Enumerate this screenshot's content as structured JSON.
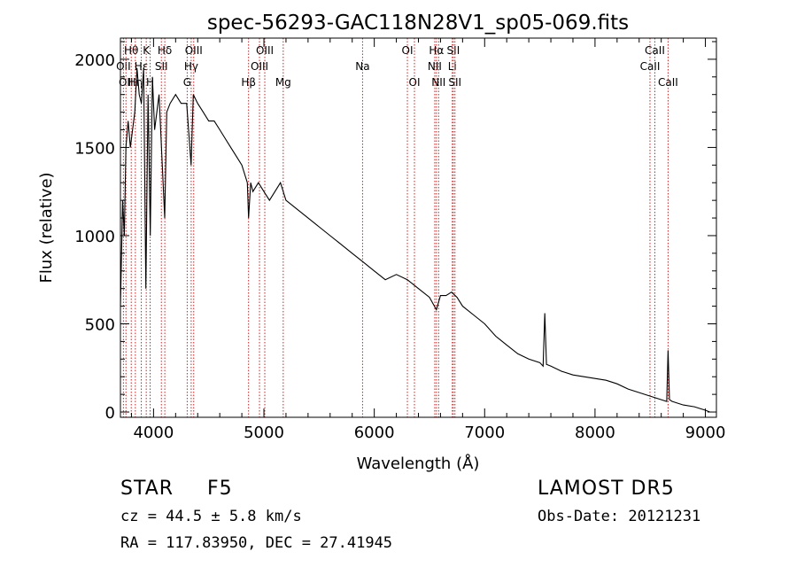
{
  "chart_data": {
    "type": "line",
    "title": "spec-56293-GAC118N28V1_sp05-069.fits",
    "xlabel": "Wavelength (Å)",
    "ylabel": "Flux (relative)",
    "xlim": [
      3700,
      9100
    ],
    "ylim": [
      -30,
      2120
    ],
    "xticks": [
      4000,
      5000,
      6000,
      7000,
      8000,
      9000
    ],
    "yticks": [
      0,
      500,
      1000,
      1500,
      2000
    ],
    "series": [
      {
        "x": [
          3700,
          3720,
          3735,
          3750,
          3770,
          3790,
          3810,
          3830,
          3850,
          3870,
          3890,
          3910,
          3930,
          3950,
          3970,
          3990,
          4010,
          4050,
          4101,
          4120,
          4150,
          4200,
          4250,
          4300,
          4340,
          4360,
          4400,
          4450,
          4500,
          4550,
          4600,
          4650,
          4700,
          4750,
          4800,
          4850,
          4861,
          4880,
          4900,
          4950,
          5000,
          5050,
          5100,
          5150,
          5200,
          5300,
          5400,
          5500,
          5600,
          5700,
          5800,
          5900,
          6000,
          6100,
          6200,
          6300,
          6400,
          6500,
          6563,
          6600,
          6650,
          6700,
          6750,
          6800,
          6900,
          7000,
          7100,
          7200,
          7300,
          7400,
          7500,
          7530,
          7545,
          7560,
          7600,
          7700,
          7800,
          7900,
          8000,
          8100,
          8200,
          8300,
          8400,
          8500,
          8550,
          8600,
          8650,
          8662,
          8675,
          8700,
          8800,
          8900,
          9000,
          9040
        ],
        "y": [
          600,
          1200,
          1000,
          1500,
          1650,
          1500,
          1600,
          1700,
          1950,
          1800,
          1750,
          1950,
          700,
          1800,
          1000,
          1900,
          1600,
          1800,
          1100,
          1700,
          1750,
          1800,
          1750,
          1750,
          1400,
          1800,
          1750,
          1700,
          1650,
          1650,
          1600,
          1550,
          1500,
          1450,
          1400,
          1300,
          1100,
          1300,
          1250,
          1300,
          1250,
          1200,
          1250,
          1300,
          1200,
          1150,
          1100,
          1050,
          1000,
          950,
          900,
          850,
          800,
          750,
          780,
          750,
          700,
          650,
          580,
          660,
          660,
          680,
          650,
          600,
          550,
          500,
          430,
          380,
          330,
          300,
          280,
          260,
          560,
          270,
          260,
          230,
          210,
          200,
          190,
          180,
          160,
          130,
          110,
          90,
          80,
          70,
          60,
          350,
          70,
          60,
          40,
          30,
          10,
          0
        ]
      }
    ],
    "lines": [
      {
        "x": 3727,
        "label": "OII",
        "row": 2
      },
      {
        "x": 3750,
        "label": "OII",
        "row": 3
      },
      {
        "x": 3798,
        "label": "Hθ",
        "row": 1
      },
      {
        "x": 3835,
        "label": "Hη",
        "row": 3
      },
      {
        "x": 3889,
        "label": "Hε",
        "row": 2
      },
      {
        "x": 3934,
        "label": "K",
        "row": 1
      },
      {
        "x": 3969,
        "label": "H",
        "row": 3
      },
      {
        "x": 4071,
        "label": "SII",
        "row": 2
      },
      {
        "x": 4102,
        "label": "Hδ",
        "row": 1
      },
      {
        "x": 4305,
        "label": "G",
        "row": 3
      },
      {
        "x": 4341,
        "label": "Hγ",
        "row": 2
      },
      {
        "x": 4364,
        "label": "OIII",
        "row": 1
      },
      {
        "x": 4861,
        "label": "Hβ",
        "row": 3
      },
      {
        "x": 4960,
        "label": "OIII",
        "row": 2
      },
      {
        "x": 5008,
        "label": "OIII",
        "row": 1
      },
      {
        "x": 5175,
        "label": "Mg",
        "row": 3
      },
      {
        "x": 5894,
        "label": "Na",
        "row": 2
      },
      {
        "x": 6300,
        "label": "OI",
        "row": 1
      },
      {
        "x": 6364,
        "label": "OI",
        "row": 3
      },
      {
        "x": 6548,
        "label": "NII",
        "row": 2
      },
      {
        "x": 6563,
        "label": "Hα",
        "row": 1
      },
      {
        "x": 6583,
        "label": "NII",
        "row": 3
      },
      {
        "x": 6707,
        "label": "Li",
        "row": 2
      },
      {
        "x": 6716,
        "label": "SII",
        "row": 1
      },
      {
        "x": 6731,
        "label": "SII",
        "row": 3
      },
      {
        "x": 8498,
        "label": "CaII",
        "row": 2
      },
      {
        "x": 8542,
        "label": "CaII",
        "row": 1
      },
      {
        "x": 8662,
        "label": "CaII",
        "row": 3
      }
    ]
  },
  "info": {
    "class": "STAR",
    "subclass": "F5",
    "survey": "LAMOST DR5",
    "redshift": "cz = 44.5 ± 5.8 km/s",
    "obs_date": "Obs-Date: 20121231",
    "coords": "RA = 117.83950, DEC =  27.41945"
  }
}
